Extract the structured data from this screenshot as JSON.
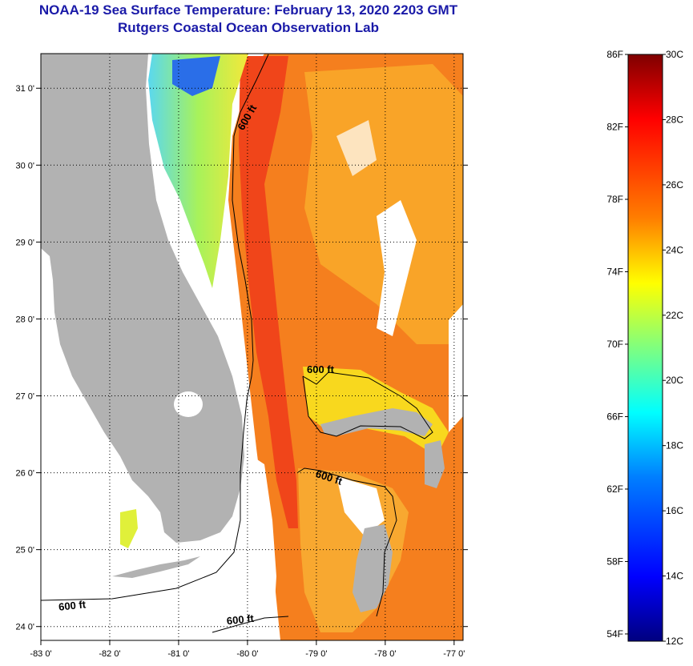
{
  "title": {
    "line1": "NOAA-19 Sea Surface Temperature:  February 13, 2020 2203 GMT",
    "line2": "Rutgers Coastal Ocean Observation Lab"
  },
  "axes": {
    "longitude_labels": [
      "-83 0'",
      "-82 0'",
      "-81 0'",
      "-80 0'",
      "-79 0'",
      "-78 0'",
      "-77 0'"
    ],
    "longitude_values": [
      -83,
      -82,
      -81,
      -80,
      -79,
      -78,
      -77
    ],
    "latitude_labels": [
      "31 0'",
      "30 0'",
      "29 0'",
      "28 0'",
      "27 0'",
      "26 0'",
      "25 0'",
      "24 0'"
    ],
    "latitude_values": [
      31,
      30,
      29,
      28,
      27,
      26,
      25,
      24
    ],
    "lon_range": [
      -83,
      -76.87
    ],
    "lat_range": [
      23.82,
      31.45
    ]
  },
  "depth_contour": {
    "labels": [
      "600 ft",
      "600 ft",
      "600 ft",
      "600 ft",
      "600 ft"
    ]
  },
  "colorbar": {
    "fahrenheit_labels": [
      "86F",
      "82F",
      "78F",
      "74F",
      "70F",
      "66F",
      "62F",
      "58F",
      "54F"
    ],
    "fahrenheit_values": [
      86,
      82,
      78,
      74,
      70,
      66,
      62,
      58,
      54
    ],
    "celsius_labels": [
      "30C",
      "28C",
      "26C",
      "24C",
      "22C",
      "20C",
      "18C",
      "16C",
      "14C",
      "12C"
    ],
    "celsius_values": [
      30,
      28,
      26,
      24,
      22,
      20,
      18,
      16,
      14,
      12
    ],
    "range_c": [
      12,
      30
    ],
    "colors": [
      "#00007f",
      "#0000ff",
      "#007fff",
      "#00ffff",
      "#7fff7f",
      "#ffff00",
      "#ff7f00",
      "#ff0000",
      "#7f0000"
    ]
  },
  "colors": {
    "land": "#b2b2b2",
    "title": "#1a1aa8",
    "gulf_stream": "#f0451a",
    "warm_orange": "#f57f1e",
    "shelf_cool": "#a8f25a",
    "bahamas_shallow": "#f8d81e"
  }
}
